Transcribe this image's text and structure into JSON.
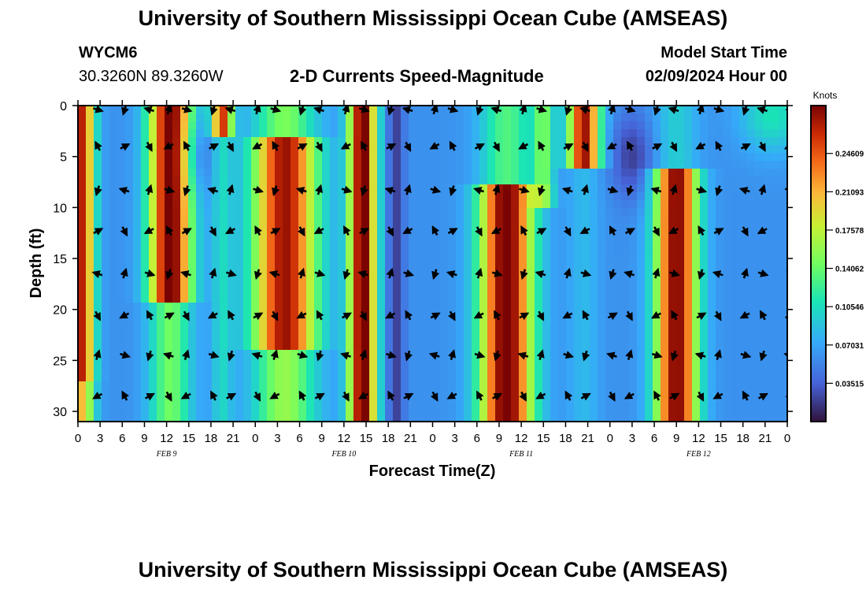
{
  "page_title": "University of Southern Mississippi Ocean Cube (AMSEAS)",
  "page_title_bottom": "University of Southern Mississippi Ocean Cube (AMSEAS)",
  "station": {
    "id": "WYCM6",
    "coords": "30.3260N  89.3260W"
  },
  "model": {
    "label": "Model Start Time",
    "start": "02/09/2024 Hour 00"
  },
  "colors": {
    "low": "#30123b",
    "mid": "#1ae4b6",
    "high": "#7a0403"
  },
  "chart_data": {
    "type": "heatmap",
    "title": "2-D Currents Speed-Magnitude",
    "xlabel": "Forecast Time(Z)",
    "ylabel": "Depth (ft)",
    "colorbar_label": "Knots",
    "colorbar_ticks": [
      "0.24609",
      "0.21093",
      "0.17578",
      "0.14062",
      "0.10546",
      "0.07031",
      "0.03515"
    ],
    "colorbar_values": [
      0.24609,
      0.21093,
      0.17578,
      0.14062,
      0.10546,
      0.07031,
      0.03515
    ],
    "vmin": 0.0,
    "vmax": 0.29,
    "xlim": [
      0,
      96
    ],
    "ylim": [
      0,
      31
    ],
    "x_ticks": [
      0,
      3,
      6,
      9,
      12,
      15,
      18,
      21,
      24,
      27,
      30,
      33,
      36,
      39,
      42,
      45,
      48,
      51,
      54,
      57,
      60,
      63,
      66,
      69,
      72,
      75,
      78,
      81,
      84,
      87,
      90,
      93,
      96
    ],
    "x_tick_labels": [
      "0",
      "3",
      "6",
      "9",
      "12",
      "15",
      "18",
      "21",
      "0",
      "3",
      "6",
      "9",
      "12",
      "15",
      "18",
      "21",
      "0",
      "3",
      "6",
      "9",
      "12",
      "15",
      "18",
      "21",
      "0",
      "3",
      "6",
      "9",
      "12",
      "15",
      "18",
      "21",
      "0"
    ],
    "y_ticks": [
      0,
      5,
      10,
      15,
      20,
      25,
      30
    ],
    "y_tick_labels": [
      "0",
      "5",
      "10",
      "15",
      "20",
      "25",
      "30"
    ],
    "date_labels": [
      {
        "x": 12,
        "text": "FEB 9"
      },
      {
        "x": 36,
        "text": "FEB 10"
      },
      {
        "x": 60,
        "text": "FEB 11"
      },
      {
        "x": 84,
        "text": "FEB 12"
      }
    ],
    "arrow_depths": [
      0.4,
      4.0,
      8.3,
      12.3,
      16.5,
      20.6,
      24.5,
      28.5
    ],
    "arrow_times": [
      3,
      6,
      10,
      12,
      15,
      18,
      21,
      24,
      27,
      30,
      33,
      36,
      39,
      42,
      45,
      48,
      51,
      54,
      57,
      60,
      63,
      66,
      69,
      72,
      75,
      78,
      81,
      84,
      87,
      90,
      93,
      96
    ]
  }
}
